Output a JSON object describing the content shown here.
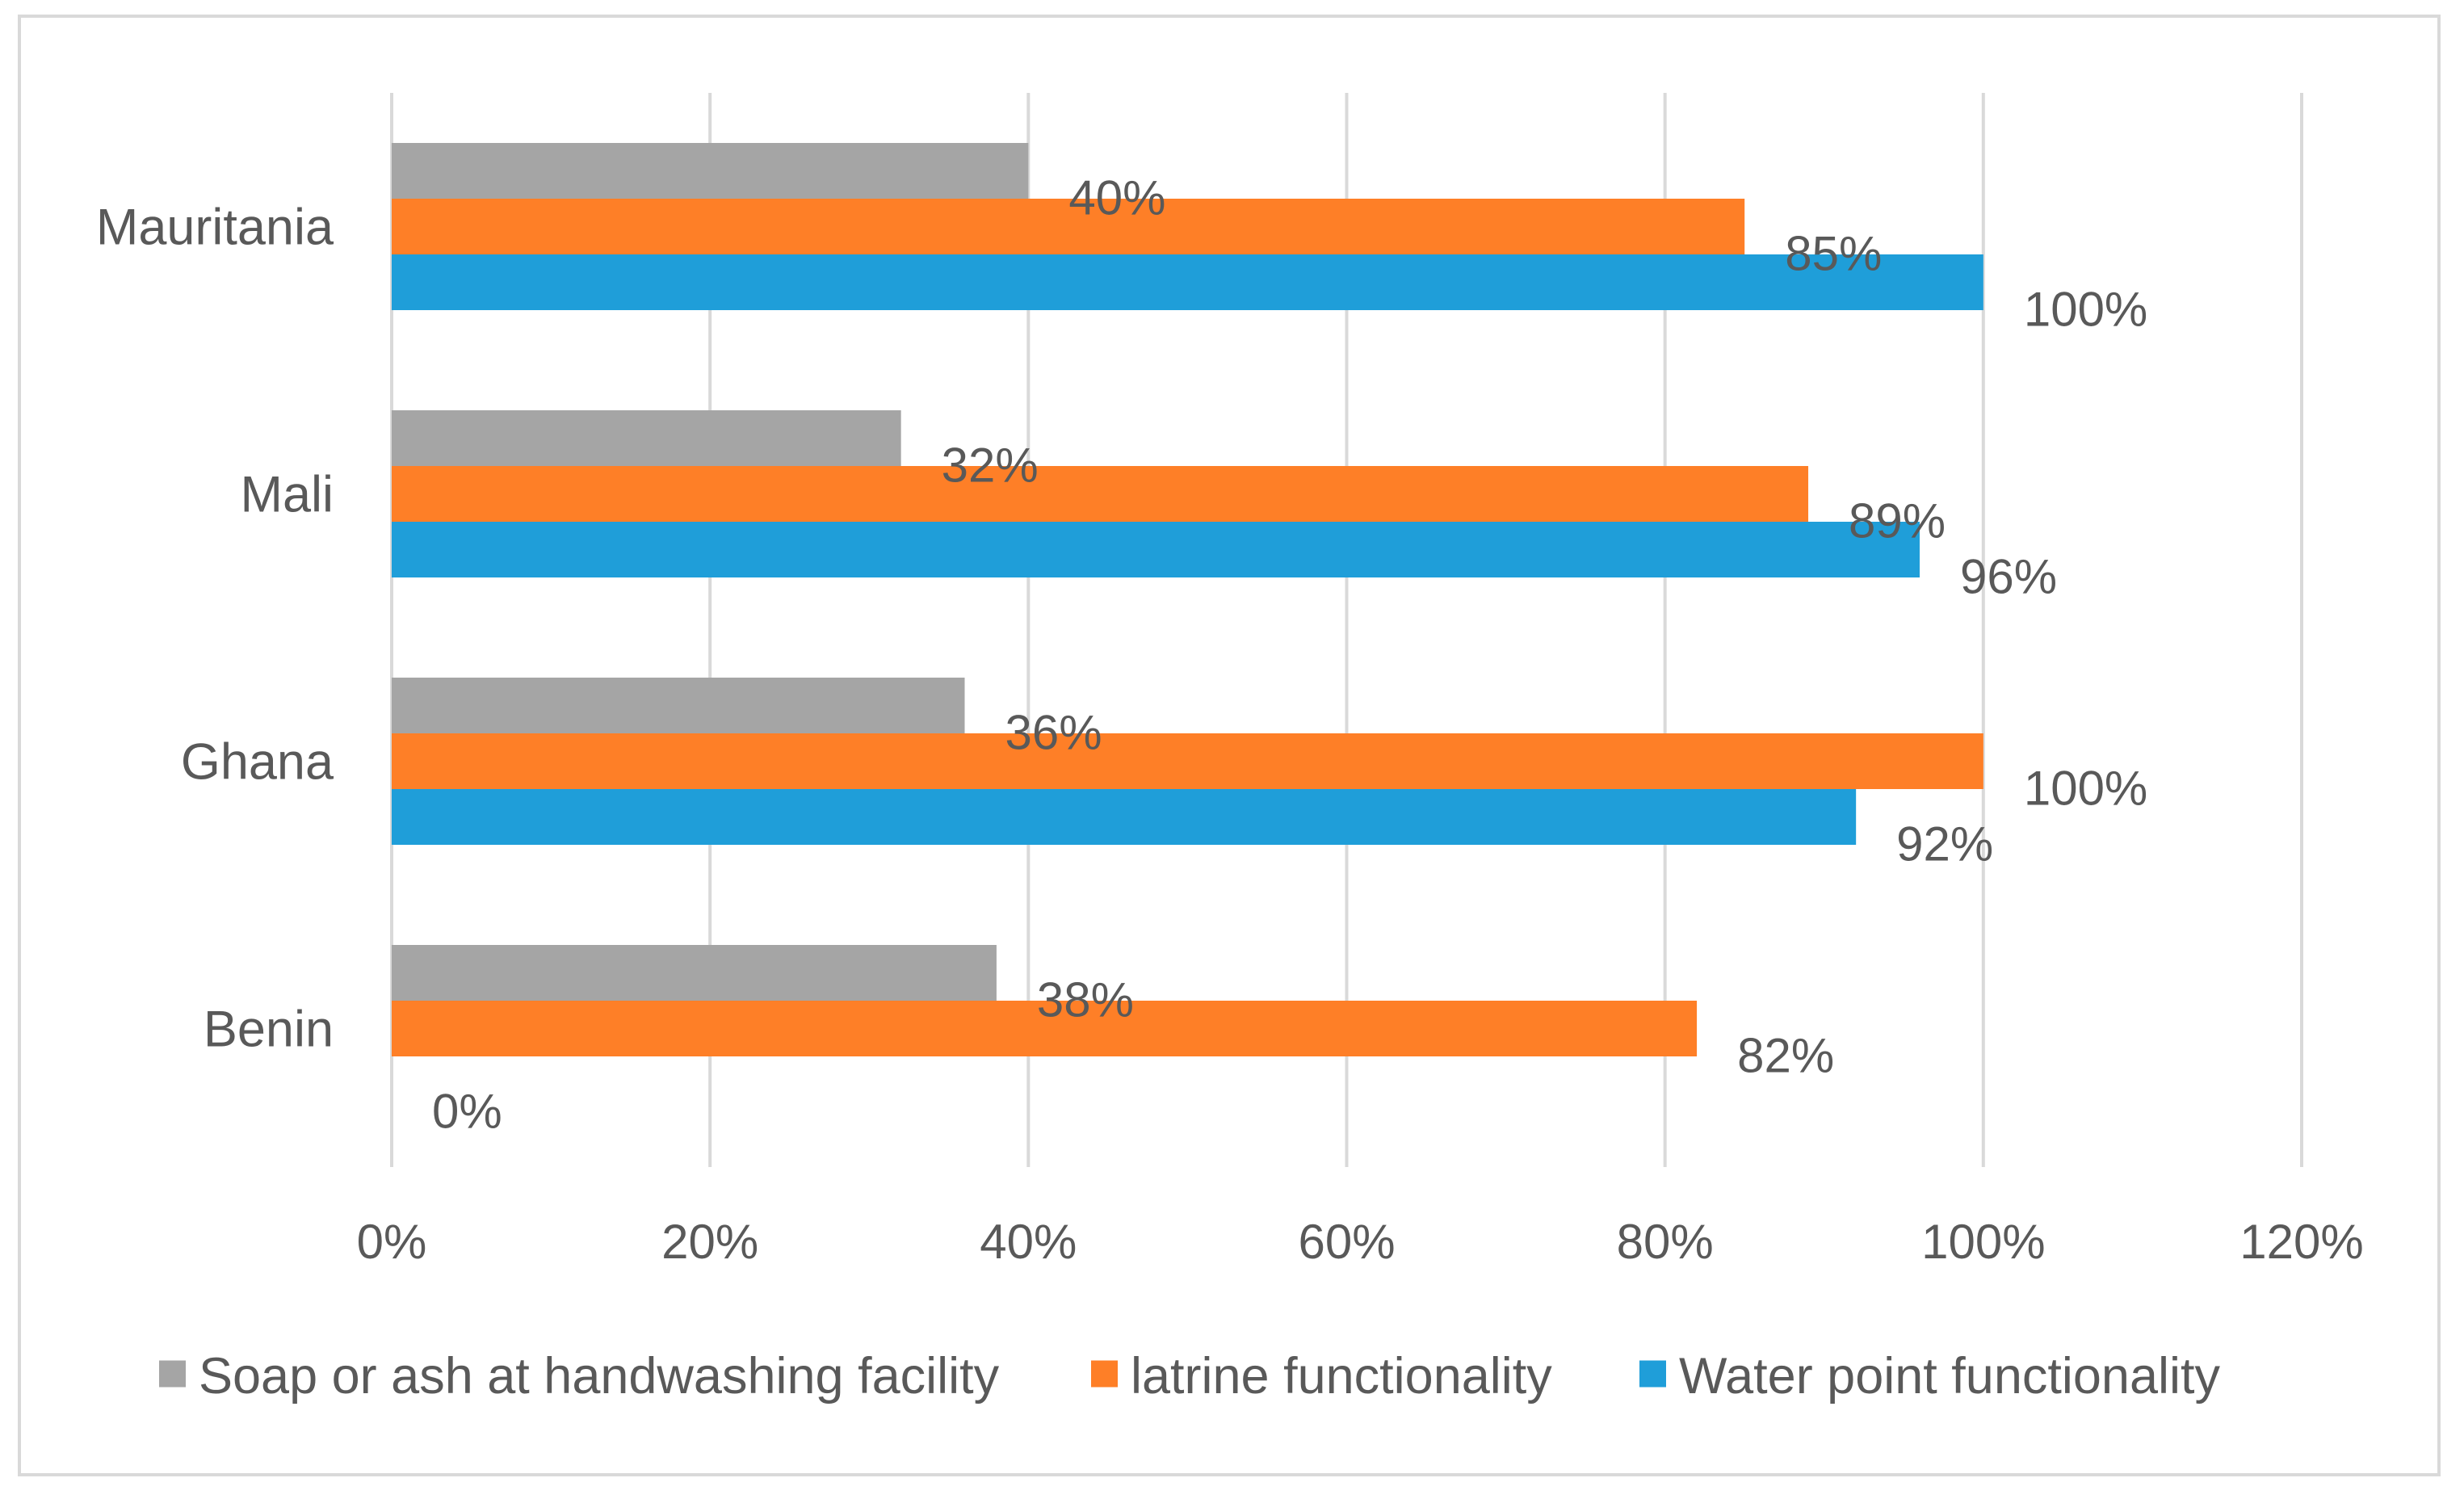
{
  "chart_data": {
    "type": "bar",
    "orientation": "horizontal",
    "title": "",
    "xlabel": "",
    "ylabel": "",
    "categories": [
      "Mauritania",
      "Mali",
      "Ghana",
      "Benin"
    ],
    "series": [
      {
        "name": "Soap or ash at handwashing facility",
        "color": "#a5a5a5",
        "values": [
          40,
          32,
          36,
          38
        ],
        "labels": [
          "40%",
          "32%",
          "36%",
          "38%"
        ]
      },
      {
        "name": "latrine functionality",
        "color": "#fe7f27",
        "values": [
          85,
          89,
          100,
          82
        ],
        "labels": [
          "85%",
          "89%",
          "100%",
          "82%"
        ]
      },
      {
        "name": "Water point functionality",
        "color": "#1f9ed9",
        "values": [
          100,
          96,
          92,
          0
        ],
        "labels": [
          "100%",
          "96%",
          "92%",
          "0%"
        ]
      }
    ],
    "xlim": [
      0,
      120
    ],
    "xticks": [
      0,
      20,
      40,
      60,
      80,
      100,
      120
    ],
    "xtick_labels": [
      "0%",
      "20%",
      "40%",
      "60%",
      "80%",
      "100%",
      "120%"
    ],
    "grid": true,
    "legend_position": "bottom"
  }
}
